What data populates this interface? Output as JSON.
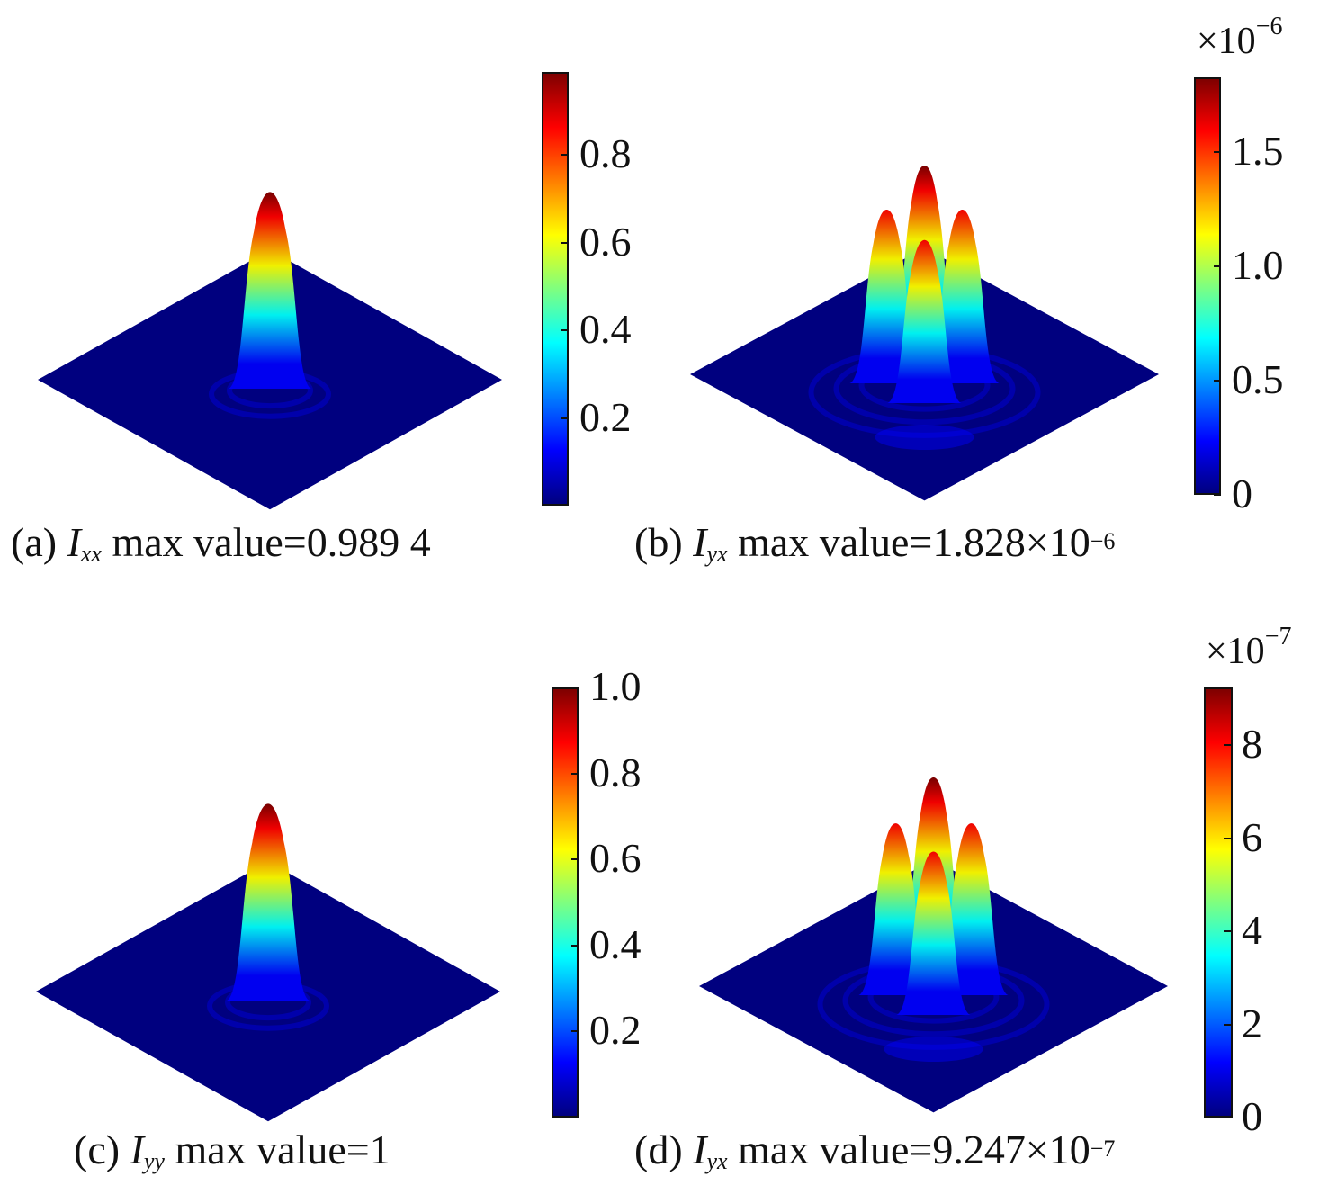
{
  "colormap": [
    "#00007f",
    "#0000ff",
    "#007fff",
    "#00ffff",
    "#7fff7f",
    "#ffff00",
    "#ff7f00",
    "#ff0000",
    "#7f0000"
  ],
  "chart_data": [
    {
      "type": "surface3d",
      "panel": "a",
      "caption": {
        "prefix": "(a) ",
        "symbol": "I",
        "subscript": "xx",
        "text": " max value=0.989 4"
      },
      "max_value": 0.9894,
      "peaks": [
        {
          "x": 0,
          "y": 0,
          "value": 0.9894
        }
      ],
      "colorbar": {
        "ticks": [
          "0.2",
          "0.4",
          "0.6",
          "0.8"
        ],
        "tick_values": [
          0.2,
          0.4,
          0.6,
          0.8
        ],
        "range": [
          0.0,
          0.9894
        ],
        "multiplier": null
      }
    },
    {
      "type": "surface3d",
      "panel": "b",
      "caption": {
        "prefix": "(b) ",
        "symbol": "I",
        "subscript": "yx",
        "text": " max value=1.828×10",
        "exponent": "−6"
      },
      "max_value": 1.828e-06,
      "peaks": [
        {
          "x": -1,
          "y": 0,
          "value": 1.6
        },
        {
          "x": 0,
          "y": -1,
          "value": 1.828
        },
        {
          "x": 1,
          "y": 0,
          "value": 1.6
        },
        {
          "x": 0,
          "y": 1,
          "value": 1.5
        }
      ],
      "colorbar": {
        "ticks": [
          "0",
          "0.5",
          "1.0",
          "1.5"
        ],
        "tick_values": [
          0,
          0.5,
          1.0,
          1.5
        ],
        "range": [
          0,
          1.828
        ],
        "multiplier": {
          "base": "×10",
          "exponent": "−6"
        }
      }
    },
    {
      "type": "surface3d",
      "panel": "c",
      "caption": {
        "prefix": "(c) ",
        "symbol": "I",
        "subscript": "yy",
        "text": " max value=1"
      },
      "max_value": 1,
      "peaks": [
        {
          "x": 0,
          "y": 0,
          "value": 1.0
        }
      ],
      "colorbar": {
        "ticks": [
          "0.2",
          "0.4",
          "0.6",
          "0.8",
          "1.0"
        ],
        "tick_values": [
          0.2,
          0.4,
          0.6,
          0.8,
          1.0
        ],
        "range": [
          0.0,
          1.0
        ],
        "multiplier": null
      }
    },
    {
      "type": "surface3d",
      "panel": "d",
      "caption": {
        "prefix": "(d) ",
        "symbol": "I",
        "subscript": "yx",
        "text": " max value=9.247×10",
        "exponent": "−7"
      },
      "max_value": 9.247e-07,
      "peaks": [
        {
          "x": -1,
          "y": 0,
          "value": 8.0
        },
        {
          "x": 0,
          "y": -1,
          "value": 9.247
        },
        {
          "x": 1,
          "y": 0,
          "value": 8.0
        },
        {
          "x": 0,
          "y": 1,
          "value": 7.6
        }
      ],
      "colorbar": {
        "ticks": [
          "0",
          "2",
          "4",
          "6",
          "8"
        ],
        "tick_values": [
          0,
          2,
          4,
          6,
          8
        ],
        "range": [
          0,
          9.247
        ],
        "multiplier": {
          "base": "×10",
          "exponent": "−7"
        }
      }
    }
  ]
}
